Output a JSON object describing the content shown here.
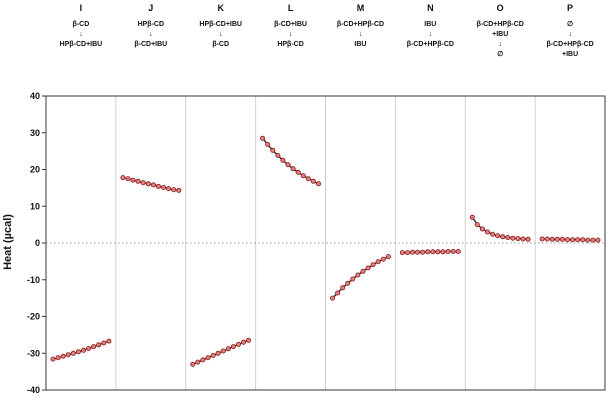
{
  "chart_data": {
    "type": "line",
    "title": "",
    "ylabel": "Heat (µcal)",
    "ylim": [
      -40,
      40
    ],
    "yticks": [
      40,
      30,
      20,
      10,
      0,
      -10,
      -20,
      -30,
      -40
    ],
    "zero_line_at": 0,
    "legend": "none",
    "grid": "off",
    "line_color": "#1a1a1a",
    "marker_color": "#e08080",
    "marker_edge_color": "#8b1a1a",
    "separator_color": "#d0d0d0",
    "border_color": "#3a3a3a",
    "panels": [
      {
        "label": "I",
        "top": [
          "β-CD"
        ],
        "arrow": "↓",
        "bottom": [
          "HPβ-CD+IBU"
        ],
        "values": [
          -31.6,
          -31.2,
          -30.8,
          -30.4,
          -30.0,
          -29.6,
          -29.2,
          -28.7,
          -28.2,
          -27.7,
          -27.2,
          -26.7
        ]
      },
      {
        "label": "J",
        "top": [
          "HPβ-CD"
        ],
        "arrow": "↓",
        "bottom": [
          "β-CD+IBU"
        ],
        "values": [
          17.8,
          17.5,
          17.1,
          16.8,
          16.4,
          16.1,
          15.8,
          15.4,
          15.1,
          14.8,
          14.5,
          14.3
        ]
      },
      {
        "label": "K",
        "top": [
          "HPβ-CD+IBU"
        ],
        "arrow": "↓",
        "bottom": [
          "β-CD"
        ],
        "values": [
          -33.0,
          -32.4,
          -31.8,
          -31.2,
          -30.6,
          -30.0,
          -29.4,
          -28.8,
          -28.2,
          -27.6,
          -27.0,
          -26.5
        ]
      },
      {
        "label": "L",
        "top": [
          "β-CD+IBU"
        ],
        "arrow": "↓",
        "bottom": [
          "HPβ-CD"
        ],
        "values": [
          28.5,
          26.8,
          25.2,
          23.8,
          22.5,
          21.3,
          20.2,
          19.2,
          18.3,
          17.5,
          16.8,
          16.1
        ]
      },
      {
        "label": "M",
        "top": [
          "β-CD+HPβ-CD"
        ],
        "arrow": "↓",
        "bottom": [
          "IBU"
        ],
        "values": [
          -15.0,
          -13.6,
          -12.2,
          -11.0,
          -9.8,
          -8.7,
          -7.7,
          -6.8,
          -5.9,
          -5.1,
          -4.4,
          -3.7
        ]
      },
      {
        "label": "N",
        "top": [
          "IBU"
        ],
        "arrow": "↓",
        "bottom": [
          "β-CD+HPβ-CD"
        ],
        "values": [
          -2.6,
          -2.6,
          -2.5,
          -2.5,
          -2.5,
          -2.4,
          -2.4,
          -2.4,
          -2.4,
          -2.3,
          -2.3,
          -2.3
        ]
      },
      {
        "label": "O",
        "top": [
          "β-CD+HPβ-CD",
          "+IBU"
        ],
        "arrow": "↓",
        "bottom": [
          "∅"
        ],
        "values": [
          7.0,
          5.0,
          3.8,
          3.0,
          2.4,
          2.0,
          1.7,
          1.5,
          1.3,
          1.2,
          1.1,
          1.0
        ]
      },
      {
        "label": "P",
        "top": [
          "∅"
        ],
        "arrow": "↓",
        "bottom": [
          "β-CD+HPβ-CD",
          "+IBU"
        ],
        "values": [
          1.1,
          1.1,
          1.0,
          1.0,
          1.0,
          0.9,
          0.9,
          0.9,
          0.9,
          0.8,
          0.8,
          0.8
        ]
      }
    ]
  }
}
